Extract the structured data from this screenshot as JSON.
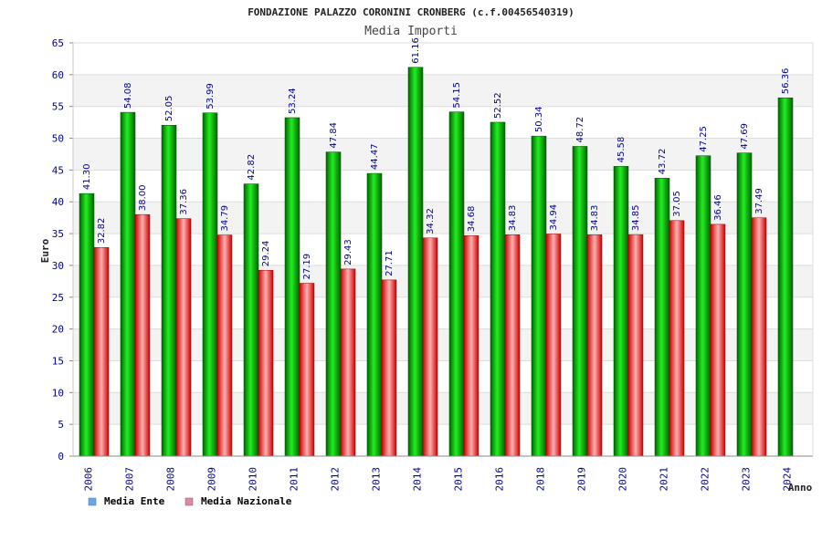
{
  "chart_data": {
    "type": "bar",
    "title": "FONDAZIONE PALAZZO CORONINI CRONBERG (c.f.00456540319)",
    "subtitle": "Media Importi",
    "xlabel": "Anno",
    "ylabel": "Euro",
    "ylim": [
      0,
      65
    ],
    "yticks": [
      0,
      5,
      10,
      15,
      20,
      25,
      30,
      35,
      40,
      45,
      50,
      55,
      60,
      65
    ],
    "grid": true,
    "legend_position": "bottom-left",
    "categories": [
      "2006",
      "2007",
      "2008",
      "2009",
      "2010",
      "2011",
      "2012",
      "2013",
      "2014",
      "2015",
      "2016",
      "2018",
      "2019",
      "2020",
      "2021",
      "2022",
      "2023",
      "2024"
    ],
    "series": [
      {
        "name": "Media Ente",
        "color": "#00b000",
        "legend_color": "#6aa6e8",
        "values": [
          41.3,
          54.08,
          52.05,
          53.99,
          42.82,
          53.24,
          47.84,
          44.47,
          61.16,
          54.15,
          52.52,
          50.34,
          48.72,
          45.58,
          43.72,
          47.25,
          47.69,
          56.36
        ],
        "labels": [
          "41.30",
          "54.08",
          "52.05",
          "53.99",
          "42.82",
          "53.24",
          "47.84",
          "44.47",
          "61.16",
          "54.15",
          "52.52",
          "50.34",
          "48.72",
          "45.58",
          "43.72",
          "47.25",
          "47.69",
          "56.36"
        ]
      },
      {
        "name": "Media Nazionale",
        "color": "#e00000",
        "legend_color": "#d98aa8",
        "values": [
          32.82,
          38.0,
          37.36,
          34.79,
          29.24,
          27.19,
          29.43,
          27.71,
          34.32,
          34.68,
          34.83,
          34.94,
          34.83,
          34.85,
          37.05,
          36.46,
          37.49,
          null
        ],
        "labels": [
          "32.82",
          "38.00",
          "37.36",
          "34.79",
          "29.24",
          "27.19",
          "29.43",
          "27.71",
          "34.32",
          "34.68",
          "34.83",
          "34.94",
          "34.83",
          "34.85",
          "37.05",
          "36.46",
          "37.49",
          ""
        ]
      }
    ]
  }
}
